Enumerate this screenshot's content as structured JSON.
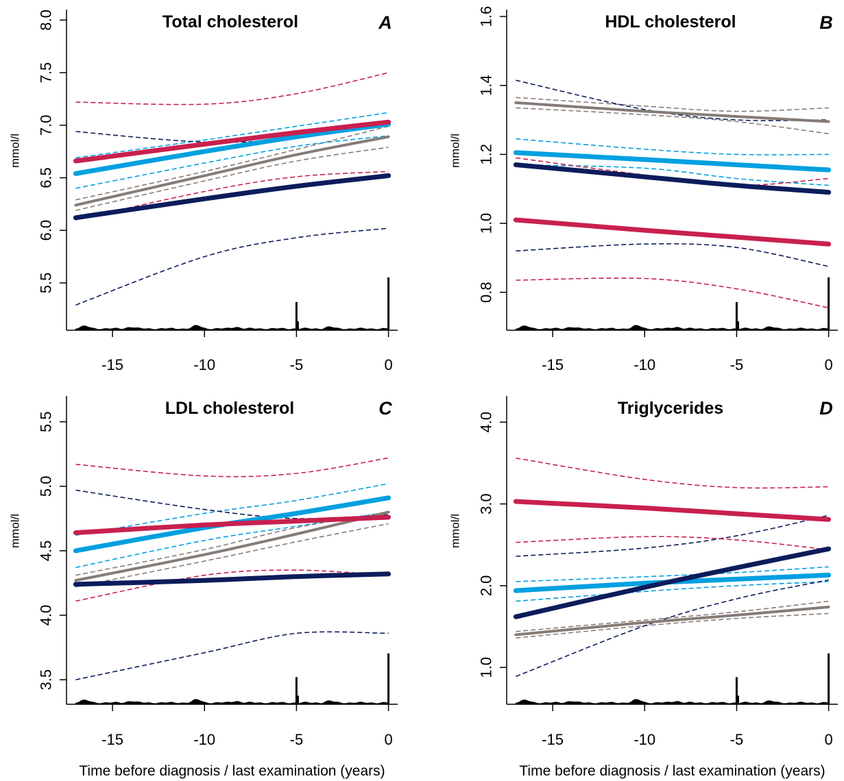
{
  "colors": {
    "red": "#c8204f",
    "blue": "#00a0e0",
    "gray": "#857c77",
    "navy": "#0c1c5c"
  },
  "xlabel": "Time before diagnosis / last examination (years)",
  "chart_data": [
    {
      "type": "line",
      "panel": "A",
      "title": "Total cholesterol",
      "ylabel": "mmol/l",
      "xlabel": "",
      "xlim": [
        -17.5,
        0.5
      ],
      "ylim": [
        5.05,
        8.1
      ],
      "x_ticks": [
        -15,
        -10,
        -5,
        0
      ],
      "y_ticks": [
        5.5,
        6.0,
        6.5,
        7.0,
        7.5,
        8.0
      ],
      "y_tick_labels": [
        "5.5",
        "6.0",
        "6.5",
        "7.0",
        "7.5",
        "8.0"
      ],
      "x": [
        -17,
        -10,
        -5,
        0
      ],
      "series": [
        {
          "color": "red",
          "values": [
            6.66,
            6.82,
            6.93,
            7.03
          ],
          "lower": [
            6.1,
            6.37,
            6.51,
            6.56
          ],
          "upper": [
            7.22,
            7.2,
            7.3,
            7.5
          ]
        },
        {
          "color": "blue",
          "values": [
            6.54,
            6.75,
            6.89,
            7.01
          ],
          "lower": [
            6.4,
            6.64,
            6.8,
            6.9
          ],
          "upper": [
            6.69,
            6.86,
            6.99,
            7.12
          ]
        },
        {
          "color": "gray",
          "values": [
            6.24,
            6.52,
            6.72,
            6.89
          ],
          "lower": [
            6.19,
            6.47,
            6.66,
            6.79
          ],
          "upper": [
            6.29,
            6.56,
            6.77,
            6.99
          ]
        },
        {
          "color": "navy",
          "values": [
            6.12,
            6.3,
            6.42,
            6.52
          ],
          "lower": [
            5.29,
            5.75,
            5.93,
            6.02
          ],
          "upper": [
            6.94,
            6.84,
            6.88,
            7.02
          ]
        }
      ]
    },
    {
      "type": "line",
      "panel": "B",
      "title": "HDL cholesterol",
      "ylabel": "mmol/l",
      "xlabel": "",
      "xlim": [
        -17.5,
        0.5
      ],
      "ylim": [
        0.69,
        1.62
      ],
      "x_ticks": [
        -15,
        -10,
        -5,
        0
      ],
      "y_ticks": [
        0.8,
        1.0,
        1.2,
        1.4,
        1.6
      ],
      "y_tick_labels": [
        "0.8",
        "1.0",
        "1.2",
        "1.4",
        "1.6"
      ],
      "x": [
        -17,
        -10,
        -5,
        0
      ],
      "series": [
        {
          "color": "red",
          "values": [
            1.01,
            0.98,
            0.96,
            0.94
          ],
          "lower": [
            0.835,
            0.84,
            0.81,
            0.755
          ],
          "upper": [
            1.19,
            1.14,
            1.11,
            1.13
          ]
        },
        {
          "color": "blue",
          "values": [
            1.205,
            1.185,
            1.17,
            1.155
          ],
          "lower": [
            1.17,
            1.16,
            1.13,
            1.11
          ],
          "upper": [
            1.245,
            1.215,
            1.2,
            1.2
          ]
        },
        {
          "color": "gray",
          "values": [
            1.35,
            1.325,
            1.31,
            1.295
          ],
          "lower": [
            1.335,
            1.315,
            1.295,
            1.26
          ],
          "upper": [
            1.365,
            1.34,
            1.325,
            1.335
          ]
        },
        {
          "color": "navy",
          "values": [
            1.17,
            1.135,
            1.11,
            1.09
          ],
          "lower": [
            0.92,
            0.94,
            0.93,
            0.875
          ],
          "upper": [
            1.415,
            1.33,
            1.3,
            1.3
          ]
        }
      ]
    },
    {
      "type": "line",
      "panel": "C",
      "title": "LDL cholesterol",
      "ylabel": "mmol/l",
      "xlabel": "Time before diagnosis / last examination (years)",
      "xlim": [
        -17.5,
        0.5
      ],
      "ylim": [
        3.31,
        5.7
      ],
      "x_ticks": [
        -15,
        -10,
        -5,
        0
      ],
      "y_ticks": [
        3.5,
        4.0,
        4.5,
        5.0,
        5.5
      ],
      "y_tick_labels": [
        "3.5",
        "4.0",
        "4.5",
        "5.0",
        "5.5"
      ],
      "x": [
        -17,
        -10,
        -5,
        0
      ],
      "series": [
        {
          "color": "red",
          "values": [
            4.64,
            4.7,
            4.73,
            4.76
          ],
          "lower": [
            4.11,
            4.31,
            4.35,
            4.31
          ],
          "upper": [
            5.17,
            5.08,
            5.1,
            5.22
          ]
        },
        {
          "color": "blue",
          "values": [
            4.5,
            4.68,
            4.79,
            4.91
          ],
          "lower": [
            4.37,
            4.58,
            4.69,
            4.8
          ],
          "upper": [
            4.62,
            4.79,
            4.89,
            5.02
          ]
        },
        {
          "color": "gray",
          "values": [
            4.27,
            4.47,
            4.63,
            4.8
          ],
          "lower": [
            4.22,
            4.42,
            4.57,
            4.71
          ],
          "upper": [
            4.31,
            4.51,
            4.68,
            4.8
          ]
        },
        {
          "color": "navy",
          "values": [
            4.24,
            4.27,
            4.3,
            4.32
          ],
          "lower": [
            3.5,
            3.71,
            3.86,
            3.86
          ],
          "upper": [
            4.97,
            4.82,
            4.75,
            4.78
          ]
        }
      ]
    },
    {
      "type": "line",
      "panel": "D",
      "title": "Triglycerides",
      "ylabel": "mmol/l",
      "xlabel": "Time before diagnosis / last examination (years)",
      "xlim": [
        -17.5,
        0.5
      ],
      "ylim": [
        0.55,
        4.32
      ],
      "x_ticks": [
        -15,
        -10,
        -5,
        0
      ],
      "y_ticks": [
        1.0,
        2.0,
        3.0,
        4.0
      ],
      "y_tick_labels": [
        "1.0",
        "2.0",
        "3.0",
        "4.0"
      ],
      "x": [
        -17,
        -10,
        -5,
        0
      ],
      "series": [
        {
          "color": "red",
          "values": [
            3.03,
            2.95,
            2.88,
            2.81
          ],
          "lower": [
            2.53,
            2.6,
            2.56,
            2.44
          ],
          "upper": [
            3.56,
            3.3,
            3.2,
            3.21
          ]
        },
        {
          "color": "blue",
          "values": [
            1.94,
            2.03,
            2.08,
            2.13
          ],
          "lower": [
            1.81,
            1.93,
            2.0,
            2.05
          ],
          "upper": [
            2.05,
            2.11,
            2.16,
            2.23
          ]
        },
        {
          "color": "gray",
          "values": [
            1.4,
            1.55,
            1.64,
            1.74
          ],
          "lower": [
            1.36,
            1.51,
            1.6,
            1.66
          ],
          "upper": [
            1.44,
            1.58,
            1.68,
            1.81
          ]
        },
        {
          "color": "navy",
          "values": [
            1.62,
            1.98,
            2.22,
            2.45
          ],
          "lower": [
            0.89,
            1.51,
            1.84,
            2.07
          ],
          "upper": [
            2.36,
            2.46,
            2.61,
            2.86
          ]
        }
      ]
    }
  ]
}
